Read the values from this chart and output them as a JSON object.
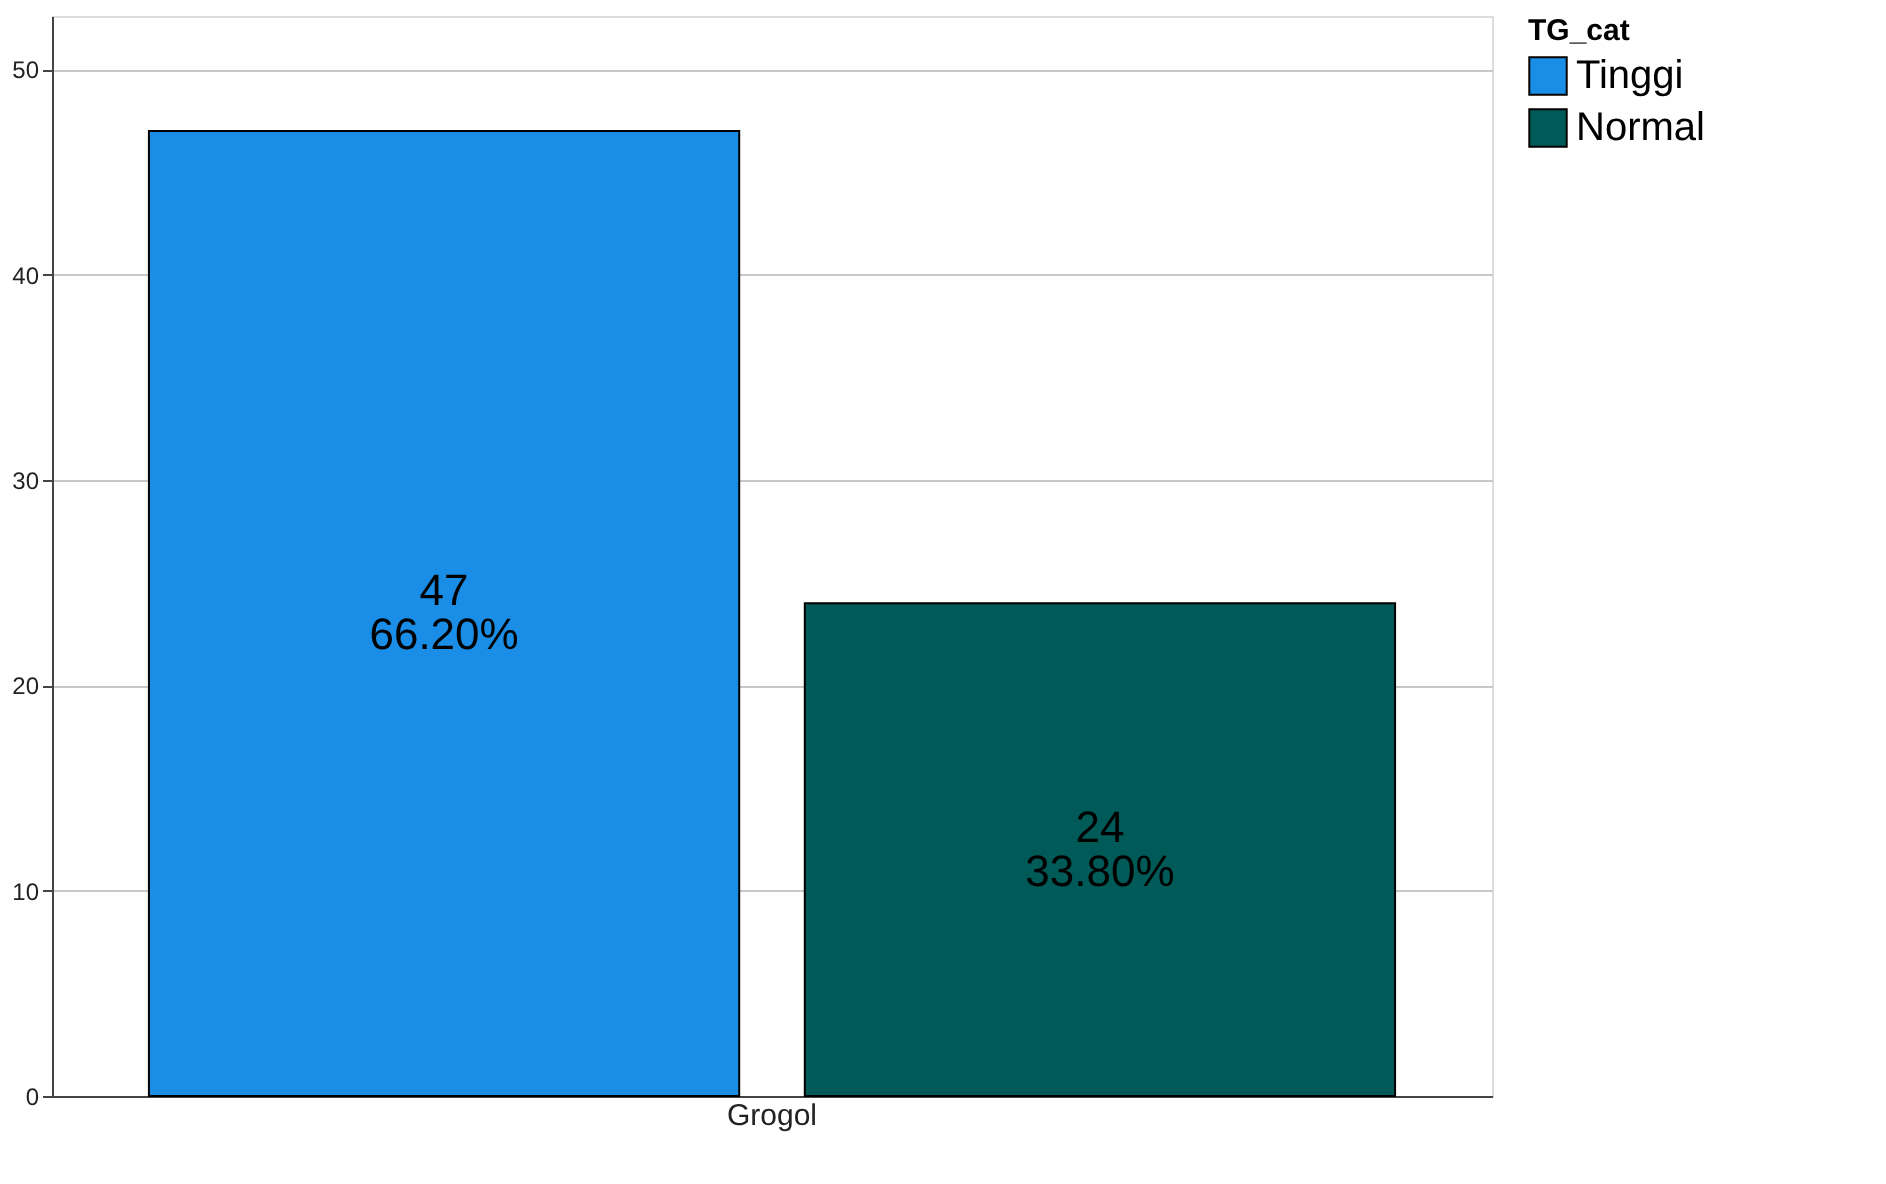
{
  "chart_data": {
    "type": "bar",
    "categories": [
      "Grogol"
    ],
    "legend_title": "TG_cat",
    "series": [
      {
        "name": "Tinggi",
        "color": "#1a8ee6",
        "values": [
          47
        ],
        "value_labels": [
          "47\n66.20%"
        ]
      },
      {
        "name": "Normal",
        "color": "#005a57",
        "values": [
          24
        ],
        "value_labels": [
          "24\n33.80%"
        ]
      }
    ],
    "ylim": [
      0,
      52.6
    ],
    "yticks": [
      0,
      10,
      20,
      30,
      40,
      50
    ],
    "grid": "y",
    "legend": "top right"
  }
}
